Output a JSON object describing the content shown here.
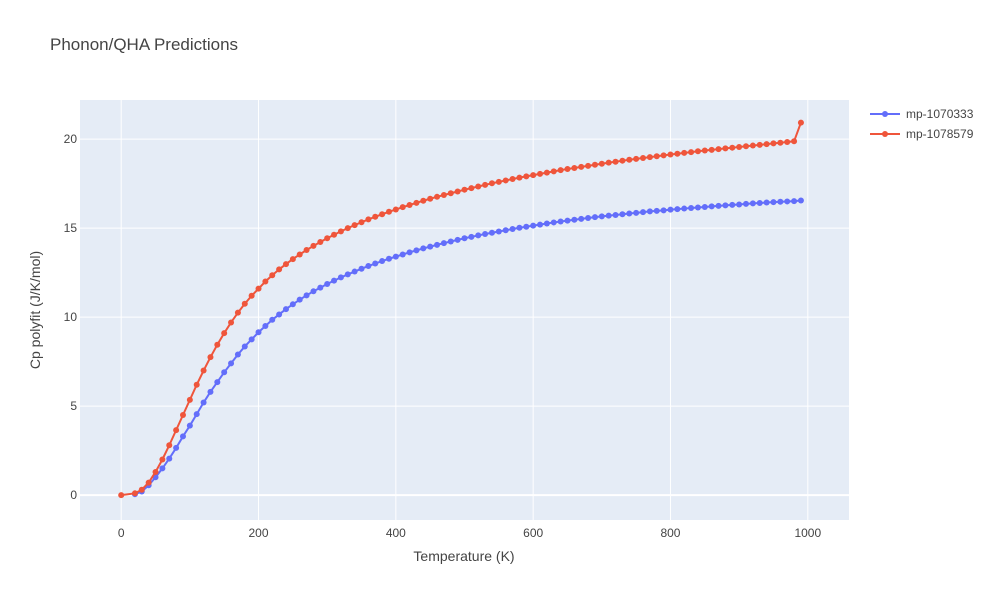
{
  "chart_data": {
    "type": "line",
    "title": "Phonon/QHA Predictions",
    "xlabel": "Temperature (K)",
    "ylabel": "Cp polyfit (J/K/mol)",
    "xlim": [
      -60,
      1060
    ],
    "ylim": [
      -1.4,
      22.2
    ],
    "xticks": [
      0,
      200,
      400,
      600,
      800,
      1000
    ],
    "xtick_labels": [
      "0",
      "200",
      "400",
      "600",
      "800",
      "1000"
    ],
    "yticks": [
      0,
      5,
      10,
      15,
      20
    ],
    "ytick_labels": [
      "0",
      "5",
      "10",
      "15",
      "20"
    ],
    "grid": true,
    "legend_position": "top-right",
    "plot_bgcolor": "#E5ECF6",
    "series": [
      {
        "name": "mp-1070333",
        "color": "#636EFA",
        "x": [
          20,
          30,
          40,
          50,
          60,
          70,
          80,
          90,
          100,
          110,
          120,
          130,
          140,
          150,
          160,
          170,
          180,
          190,
          200,
          210,
          220,
          230,
          240,
          250,
          260,
          270,
          280,
          290,
          300,
          310,
          320,
          330,
          340,
          350,
          360,
          370,
          380,
          390,
          400,
          410,
          420,
          430,
          440,
          450,
          460,
          470,
          480,
          490,
          500,
          510,
          520,
          530,
          540,
          550,
          560,
          570,
          580,
          590,
          600,
          610,
          620,
          630,
          640,
          650,
          660,
          670,
          680,
          690,
          700,
          710,
          720,
          730,
          740,
          750,
          760,
          770,
          780,
          790,
          800,
          810,
          820,
          830,
          840,
          850,
          860,
          870,
          880,
          890,
          900,
          910,
          920,
          930,
          940,
          950,
          960,
          970,
          980,
          990
        ],
        "y": [
          0.05,
          0.2,
          0.55,
          1.0,
          1.5,
          2.05,
          2.65,
          3.3,
          3.9,
          4.55,
          5.2,
          5.8,
          6.35,
          6.9,
          7.4,
          7.9,
          8.35,
          8.75,
          9.15,
          9.5,
          9.85,
          10.15,
          10.45,
          10.72,
          10.98,
          11.22,
          11.45,
          11.66,
          11.86,
          12.05,
          12.23,
          12.4,
          12.56,
          12.72,
          12.87,
          13.01,
          13.15,
          13.28,
          13.4,
          13.52,
          13.64,
          13.75,
          13.86,
          13.96,
          14.06,
          14.16,
          14.25,
          14.34,
          14.43,
          14.51,
          14.59,
          14.67,
          14.74,
          14.81,
          14.88,
          14.95,
          15.02,
          15.08,
          15.14,
          15.2,
          15.26,
          15.32,
          15.37,
          15.42,
          15.47,
          15.52,
          15.57,
          15.62,
          15.66,
          15.7,
          15.74,
          15.78,
          15.82,
          15.86,
          15.9,
          15.94,
          15.97,
          16.0,
          16.04,
          16.07,
          16.1,
          16.13,
          16.16,
          16.19,
          16.22,
          16.25,
          16.28,
          16.31,
          16.33,
          16.36,
          16.39,
          16.41,
          16.44,
          16.46,
          16.48,
          16.5,
          16.52,
          16.55
        ]
      },
      {
        "name": "mp-1078579",
        "color": "#EF553B",
        "x": [
          0,
          20,
          30,
          40,
          50,
          60,
          70,
          80,
          90,
          100,
          110,
          120,
          130,
          140,
          150,
          160,
          170,
          180,
          190,
          200,
          210,
          220,
          230,
          240,
          250,
          260,
          270,
          280,
          290,
          300,
          310,
          320,
          330,
          340,
          350,
          360,
          370,
          380,
          390,
          400,
          410,
          420,
          430,
          440,
          450,
          460,
          470,
          480,
          490,
          500,
          510,
          520,
          530,
          540,
          550,
          560,
          570,
          580,
          590,
          600,
          610,
          620,
          630,
          640,
          650,
          660,
          670,
          680,
          690,
          700,
          710,
          720,
          730,
          740,
          750,
          760,
          770,
          780,
          790,
          800,
          810,
          820,
          830,
          840,
          850,
          860,
          870,
          880,
          890,
          900,
          910,
          920,
          930,
          940,
          950,
          960,
          970,
          980,
          990
        ],
        "y": [
          0,
          0.1,
          0.3,
          0.7,
          1.3,
          2.0,
          2.8,
          3.65,
          4.5,
          5.35,
          6.2,
          7.0,
          7.75,
          8.45,
          9.1,
          9.7,
          10.25,
          10.75,
          11.2,
          11.6,
          12.0,
          12.35,
          12.68,
          12.98,
          13.26,
          13.52,
          13.77,
          14.0,
          14.22,
          14.43,
          14.63,
          14.82,
          15.0,
          15.17,
          15.33,
          15.49,
          15.64,
          15.78,
          15.92,
          16.05,
          16.18,
          16.3,
          16.42,
          16.54,
          16.65,
          16.76,
          16.86,
          16.96,
          17.06,
          17.16,
          17.25,
          17.34,
          17.43,
          17.52,
          17.6,
          17.68,
          17.76,
          17.84,
          17.91,
          17.98,
          18.05,
          18.12,
          18.19,
          18.26,
          18.32,
          18.38,
          18.44,
          18.5,
          18.56,
          18.62,
          18.68,
          18.73,
          18.79,
          18.84,
          18.89,
          18.94,
          18.99,
          19.04,
          19.09,
          19.14,
          19.18,
          19.23,
          19.27,
          19.32,
          19.36,
          19.4,
          19.44,
          19.48,
          19.52,
          19.56,
          19.6,
          19.64,
          19.68,
          19.72,
          19.76,
          19.8,
          19.84,
          19.88,
          20.93
        ]
      }
    ]
  }
}
